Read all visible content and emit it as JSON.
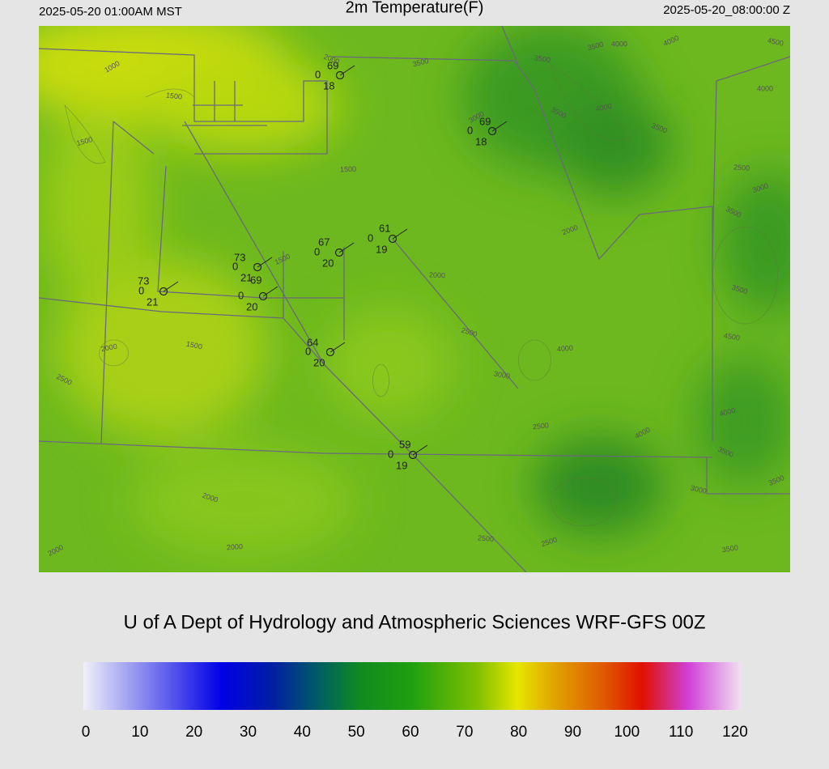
{
  "header": {
    "left": "2025-05-20 01:00AM MST",
    "title": "2m Temperature(F)",
    "right": "2025-05-20_08:00:00 Z"
  },
  "stations": [
    {
      "temp": "69",
      "mid": "0",
      "dew": "18"
    },
    {
      "temp": "69",
      "mid": "0",
      "dew": "18"
    },
    {
      "temp": "61",
      "mid": "0",
      "dew": "19"
    },
    {
      "temp": "67",
      "mid": "0",
      "dew": "20"
    },
    {
      "temp": "73",
      "mid": "0",
      "dew": "21"
    },
    {
      "temp": "69",
      "mid": "0",
      "dew": "20"
    },
    {
      "temp": "73",
      "mid": "0",
      "dew": "21"
    },
    {
      "temp": "64",
      "mid": "0",
      "dew": "20"
    },
    {
      "temp": "59",
      "mid": "0",
      "dew": "19"
    }
  ],
  "contour_labels": [
    "1000",
    "1500",
    "1500",
    "2000",
    "1500",
    "1500",
    "1500",
    "2000",
    "2500",
    "2000",
    "2000",
    "2500",
    "2500",
    "3000",
    "3500",
    "3500",
    "3500",
    "4000",
    "4000",
    "4500",
    "4000",
    "3500",
    "2500",
    "3000",
    "3500",
    "4000",
    "4000",
    "4500",
    "4000",
    "3500",
    "4000",
    "3500",
    "3000",
    "3500",
    "3500",
    "2500",
    "2500",
    "2000",
    "2000",
    "2000",
    "3000",
    "3500"
  ],
  "credit": "U of A Dept of Hydrology and Atmospheric Sciences WRF-GFS 00Z",
  "colorbar": {
    "lim": [
      0,
      120
    ],
    "ticks": [
      0,
      10,
      20,
      30,
      40,
      50,
      60,
      70,
      80,
      90,
      100,
      110,
      120
    ]
  }
}
